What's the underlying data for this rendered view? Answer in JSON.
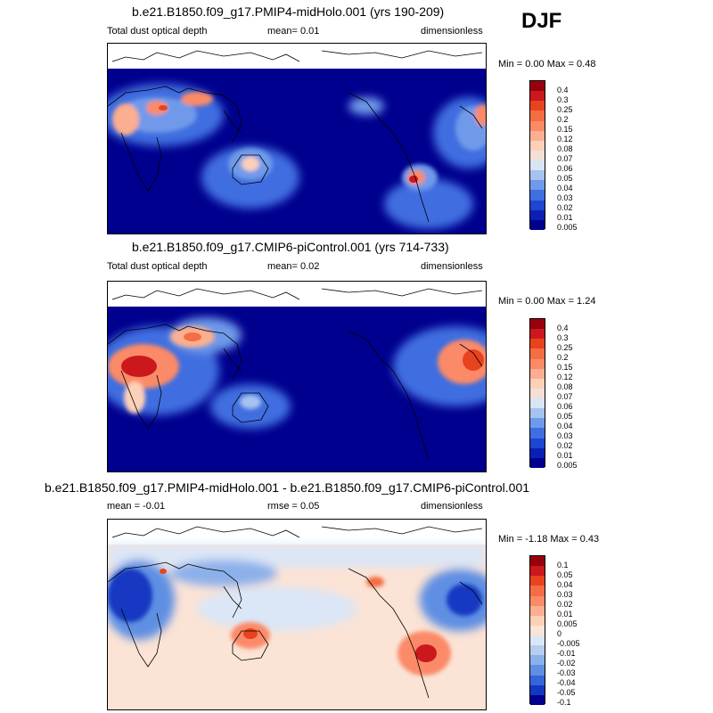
{
  "season": "DJF",
  "panels": [
    {
      "title": "b.e21.B1850.f09_g17.PMIP4-midHolo.001 (yrs 190-209)",
      "variable": "Total dust optical depth",
      "mean": "mean=   0.01",
      "units": "dimensionless",
      "minmax": "Min =   0.00 Max =   0.48",
      "colorbar": {
        "levels": [
          "0.4",
          "0.3",
          "0.25",
          "0.2",
          "0.15",
          "0.12",
          "0.08",
          "0.07",
          "0.06",
          "0.05",
          "0.04",
          "0.03",
          "0.02",
          "0.01",
          "0.005"
        ],
        "colors": [
          "#99000d",
          "#cb181d",
          "#e8431f",
          "#f46d43",
          "#fb8a67",
          "#fcae91",
          "#fdd0b8",
          "#f2dfd8",
          "#d9e4f5",
          "#a6c2ef",
          "#6f9ae9",
          "#3f6ee0",
          "#1e46d2",
          "#0a20b4",
          "#00008e"
        ]
      }
    },
    {
      "title": "b.e21.B1850.f09_g17.CMIP6-piControl.001 (yrs 714-733)",
      "variable": "Total dust optical depth",
      "mean": "mean=   0.02",
      "units": "dimensionless",
      "minmax": "Min =   0.00 Max =   1.24",
      "colorbar": {
        "levels": [
          "0.4",
          "0.3",
          "0.25",
          "0.2",
          "0.15",
          "0.12",
          "0.08",
          "0.07",
          "0.06",
          "0.05",
          "0.04",
          "0.03",
          "0.02",
          "0.01",
          "0.005"
        ],
        "colors": [
          "#99000d",
          "#cb181d",
          "#e8431f",
          "#f46d43",
          "#fb8a67",
          "#fcae91",
          "#fdd0b8",
          "#f2dfd8",
          "#d9e4f5",
          "#a6c2ef",
          "#6f9ae9",
          "#3f6ee0",
          "#1e46d2",
          "#0a20b4",
          "#00008e"
        ]
      }
    },
    {
      "title": "b.e21.B1850.f09_g17.PMIP4-midHolo.001 - b.e21.B1850.f09_g17.CMIP6-piControl.001",
      "variable": "mean =  -0.01",
      "mean": "rmse =   0.05",
      "units": "dimensionless",
      "minmax": "Min =  -1.18 Max =   0.43",
      "colorbar": {
        "levels": [
          "0.1",
          "0.05",
          "0.04",
          "0.03",
          "0.02",
          "0.01",
          "0.005",
          "0",
          "-0.005",
          "-0.01",
          "-0.02",
          "-0.03",
          "-0.04",
          "-0.05",
          "-0.1"
        ],
        "colors": [
          "#99000d",
          "#cb181d",
          "#e8431f",
          "#f46d43",
          "#fb8a67",
          "#fcae91",
          "#fdd0b8",
          "#fbe3d5",
          "#dbe6f6",
          "#b7cdef",
          "#8cb0ea",
          "#5f8fe3",
          "#3566d8",
          "#1238c2",
          "#00008e"
        ]
      }
    }
  ]
}
